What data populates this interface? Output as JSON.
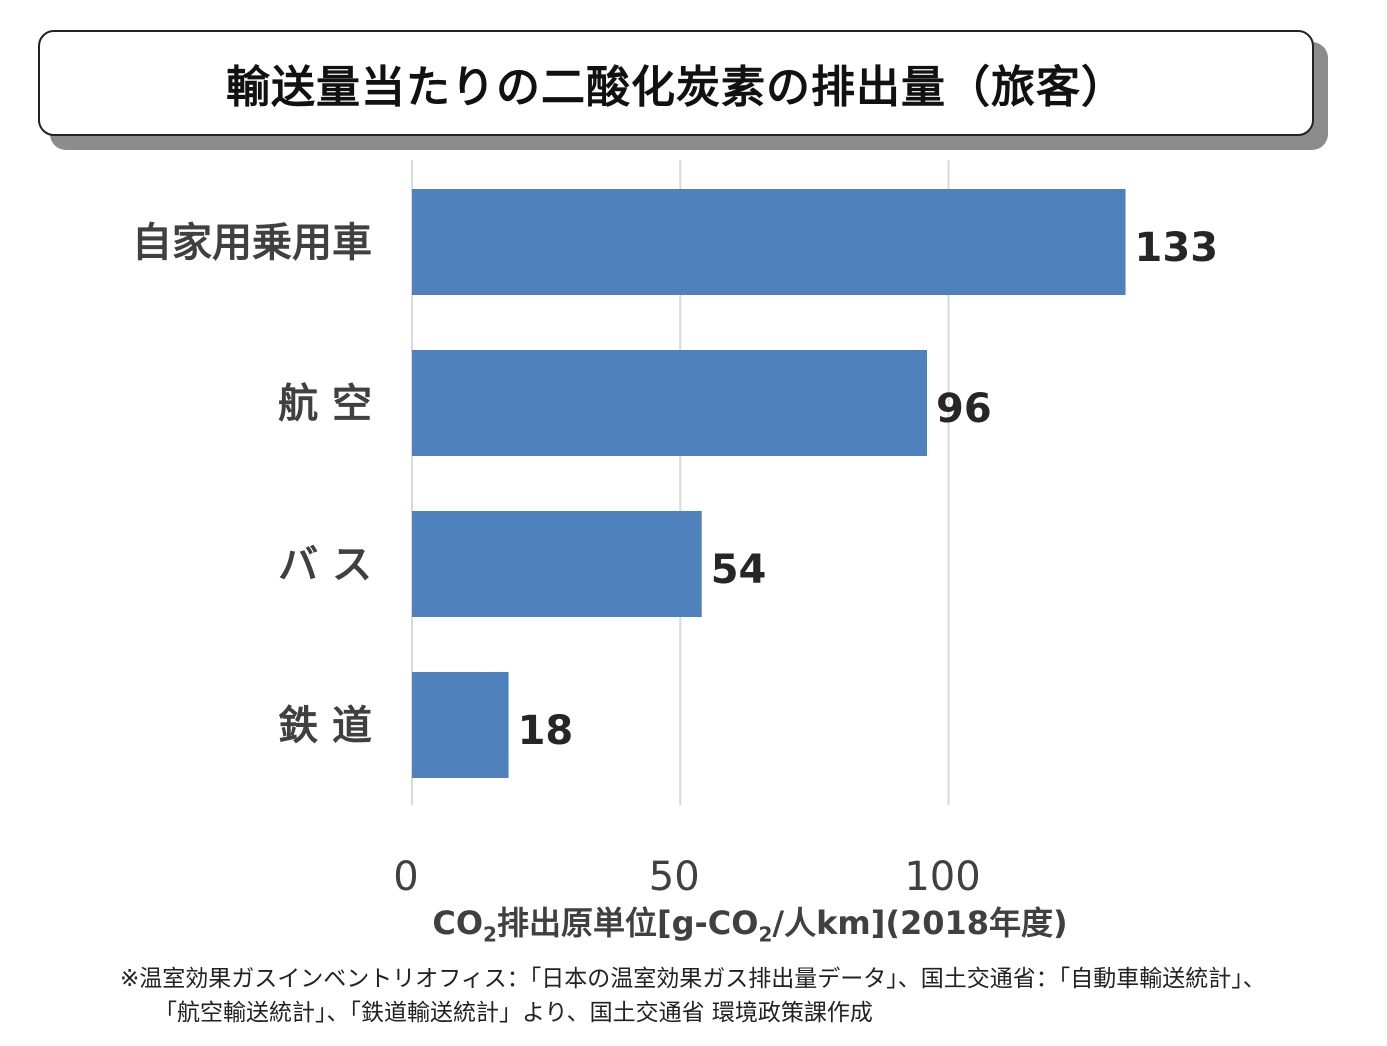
{
  "title": "輸送量当たりの二酸化炭素の排出量（旅客）",
  "chart_data": {
    "type": "bar",
    "orientation": "horizontal",
    "title": "輸送量当たりの二酸化炭素の排出量（旅客）",
    "categories": [
      "自家用乗用車",
      "航 空",
      "バ ス",
      "鉄 道"
    ],
    "values": [
      133,
      96,
      54,
      18
    ],
    "xlabel": {
      "part1": "CO",
      "sub1": "2",
      "part2": "排出原単位[g-CO",
      "sub2": "2",
      "part3": "/人km](2018年度)"
    },
    "xlim": [
      0,
      150
    ],
    "xticks": [
      0,
      50,
      100
    ],
    "grid": true,
    "bar_color": "#4f81bd",
    "gridline_color": "#d9d9d9"
  },
  "footnote": {
    "line1": "※温室効果ガスインベントリオフィス：「日本の温室効果ガス排出量データ」、国土交通省：「自動車輸送統計」、",
    "line2": "「航空輸送統計」、「鉄道輸送統計」より、国土交通省 環境政策課作成"
  }
}
